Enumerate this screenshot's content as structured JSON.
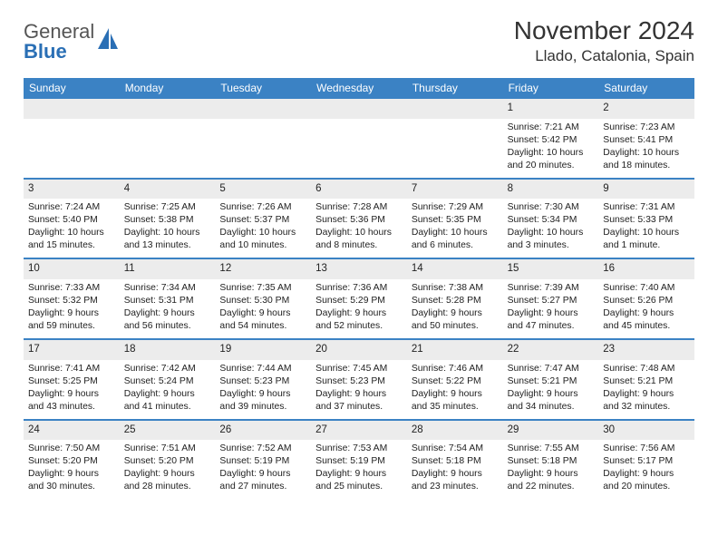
{
  "brand": {
    "line1": "General",
    "line2": "Blue"
  },
  "title": "November 2024",
  "location": "Llado, Catalonia, Spain",
  "day_names": [
    "Sunday",
    "Monday",
    "Tuesday",
    "Wednesday",
    "Thursday",
    "Friday",
    "Saturday"
  ],
  "colors": {
    "header_bg": "#3b82c4",
    "header_text": "#ffffff",
    "daynum_bg": "#ececec",
    "week_border": "#3b82c4",
    "logo_gray": "#555555",
    "logo_blue": "#2a6fb5"
  },
  "weeks": [
    [
      {
        "blank": true
      },
      {
        "blank": true
      },
      {
        "blank": true
      },
      {
        "blank": true
      },
      {
        "blank": true
      },
      {
        "day": "1",
        "sunrise": "Sunrise: 7:21 AM",
        "sunset": "Sunset: 5:42 PM",
        "daylight": "Daylight: 10 hours and 20 minutes."
      },
      {
        "day": "2",
        "sunrise": "Sunrise: 7:23 AM",
        "sunset": "Sunset: 5:41 PM",
        "daylight": "Daylight: 10 hours and 18 minutes."
      }
    ],
    [
      {
        "day": "3",
        "sunrise": "Sunrise: 7:24 AM",
        "sunset": "Sunset: 5:40 PM",
        "daylight": "Daylight: 10 hours and 15 minutes."
      },
      {
        "day": "4",
        "sunrise": "Sunrise: 7:25 AM",
        "sunset": "Sunset: 5:38 PM",
        "daylight": "Daylight: 10 hours and 13 minutes."
      },
      {
        "day": "5",
        "sunrise": "Sunrise: 7:26 AM",
        "sunset": "Sunset: 5:37 PM",
        "daylight": "Daylight: 10 hours and 10 minutes."
      },
      {
        "day": "6",
        "sunrise": "Sunrise: 7:28 AM",
        "sunset": "Sunset: 5:36 PM",
        "daylight": "Daylight: 10 hours and 8 minutes."
      },
      {
        "day": "7",
        "sunrise": "Sunrise: 7:29 AM",
        "sunset": "Sunset: 5:35 PM",
        "daylight": "Daylight: 10 hours and 6 minutes."
      },
      {
        "day": "8",
        "sunrise": "Sunrise: 7:30 AM",
        "sunset": "Sunset: 5:34 PM",
        "daylight": "Daylight: 10 hours and 3 minutes."
      },
      {
        "day": "9",
        "sunrise": "Sunrise: 7:31 AM",
        "sunset": "Sunset: 5:33 PM",
        "daylight": "Daylight: 10 hours and 1 minute."
      }
    ],
    [
      {
        "day": "10",
        "sunrise": "Sunrise: 7:33 AM",
        "sunset": "Sunset: 5:32 PM",
        "daylight": "Daylight: 9 hours and 59 minutes."
      },
      {
        "day": "11",
        "sunrise": "Sunrise: 7:34 AM",
        "sunset": "Sunset: 5:31 PM",
        "daylight": "Daylight: 9 hours and 56 minutes."
      },
      {
        "day": "12",
        "sunrise": "Sunrise: 7:35 AM",
        "sunset": "Sunset: 5:30 PM",
        "daylight": "Daylight: 9 hours and 54 minutes."
      },
      {
        "day": "13",
        "sunrise": "Sunrise: 7:36 AM",
        "sunset": "Sunset: 5:29 PM",
        "daylight": "Daylight: 9 hours and 52 minutes."
      },
      {
        "day": "14",
        "sunrise": "Sunrise: 7:38 AM",
        "sunset": "Sunset: 5:28 PM",
        "daylight": "Daylight: 9 hours and 50 minutes."
      },
      {
        "day": "15",
        "sunrise": "Sunrise: 7:39 AM",
        "sunset": "Sunset: 5:27 PM",
        "daylight": "Daylight: 9 hours and 47 minutes."
      },
      {
        "day": "16",
        "sunrise": "Sunrise: 7:40 AM",
        "sunset": "Sunset: 5:26 PM",
        "daylight": "Daylight: 9 hours and 45 minutes."
      }
    ],
    [
      {
        "day": "17",
        "sunrise": "Sunrise: 7:41 AM",
        "sunset": "Sunset: 5:25 PM",
        "daylight": "Daylight: 9 hours and 43 minutes."
      },
      {
        "day": "18",
        "sunrise": "Sunrise: 7:42 AM",
        "sunset": "Sunset: 5:24 PM",
        "daylight": "Daylight: 9 hours and 41 minutes."
      },
      {
        "day": "19",
        "sunrise": "Sunrise: 7:44 AM",
        "sunset": "Sunset: 5:23 PM",
        "daylight": "Daylight: 9 hours and 39 minutes."
      },
      {
        "day": "20",
        "sunrise": "Sunrise: 7:45 AM",
        "sunset": "Sunset: 5:23 PM",
        "daylight": "Daylight: 9 hours and 37 minutes."
      },
      {
        "day": "21",
        "sunrise": "Sunrise: 7:46 AM",
        "sunset": "Sunset: 5:22 PM",
        "daylight": "Daylight: 9 hours and 35 minutes."
      },
      {
        "day": "22",
        "sunrise": "Sunrise: 7:47 AM",
        "sunset": "Sunset: 5:21 PM",
        "daylight": "Daylight: 9 hours and 34 minutes."
      },
      {
        "day": "23",
        "sunrise": "Sunrise: 7:48 AM",
        "sunset": "Sunset: 5:21 PM",
        "daylight": "Daylight: 9 hours and 32 minutes."
      }
    ],
    [
      {
        "day": "24",
        "sunrise": "Sunrise: 7:50 AM",
        "sunset": "Sunset: 5:20 PM",
        "daylight": "Daylight: 9 hours and 30 minutes."
      },
      {
        "day": "25",
        "sunrise": "Sunrise: 7:51 AM",
        "sunset": "Sunset: 5:20 PM",
        "daylight": "Daylight: 9 hours and 28 minutes."
      },
      {
        "day": "26",
        "sunrise": "Sunrise: 7:52 AM",
        "sunset": "Sunset: 5:19 PM",
        "daylight": "Daylight: 9 hours and 27 minutes."
      },
      {
        "day": "27",
        "sunrise": "Sunrise: 7:53 AM",
        "sunset": "Sunset: 5:19 PM",
        "daylight": "Daylight: 9 hours and 25 minutes."
      },
      {
        "day": "28",
        "sunrise": "Sunrise: 7:54 AM",
        "sunset": "Sunset: 5:18 PM",
        "daylight": "Daylight: 9 hours and 23 minutes."
      },
      {
        "day": "29",
        "sunrise": "Sunrise: 7:55 AM",
        "sunset": "Sunset: 5:18 PM",
        "daylight": "Daylight: 9 hours and 22 minutes."
      },
      {
        "day": "30",
        "sunrise": "Sunrise: 7:56 AM",
        "sunset": "Sunset: 5:17 PM",
        "daylight": "Daylight: 9 hours and 20 minutes."
      }
    ]
  ]
}
